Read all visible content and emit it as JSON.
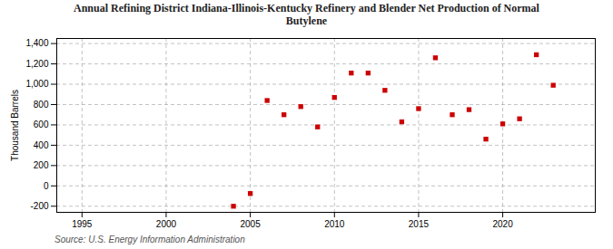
{
  "chart_data": {
    "type": "scatter",
    "title": "Annual Refining District Indiana-Illinois-Kentucky Refinery and Blender Net Production of Normal\nButylene",
    "ylabel": "Thousand Barrels",
    "source": "Source: U.S. Energy Information Administration",
    "x": [
      2004,
      2005,
      2006,
      2007,
      2008,
      2009,
      2010,
      2011,
      2012,
      2013,
      2014,
      2015,
      2016,
      2017,
      2018,
      2019,
      2020,
      2021,
      2022,
      2023
    ],
    "values": [
      -200,
      -75,
      840,
      700,
      780,
      580,
      870,
      1110,
      1110,
      940,
      630,
      760,
      1260,
      700,
      750,
      460,
      610,
      660,
      1290,
      990
    ],
    "color": "#cc0000",
    "marker": "square",
    "xlim": [
      1993.5,
      2025.5
    ],
    "xticks": [
      1995,
      2000,
      2005,
      2010,
      2015,
      2020
    ],
    "ylim": [
      -260,
      1450
    ],
    "yticks": [
      -200,
      0,
      200,
      400,
      600,
      800,
      {
        "value": 1000,
        "label": "1,000"
      },
      {
        "value": 1200,
        "label": "1,200"
      },
      {
        "value": 1400,
        "label": "1,400"
      }
    ],
    "grid": true
  }
}
